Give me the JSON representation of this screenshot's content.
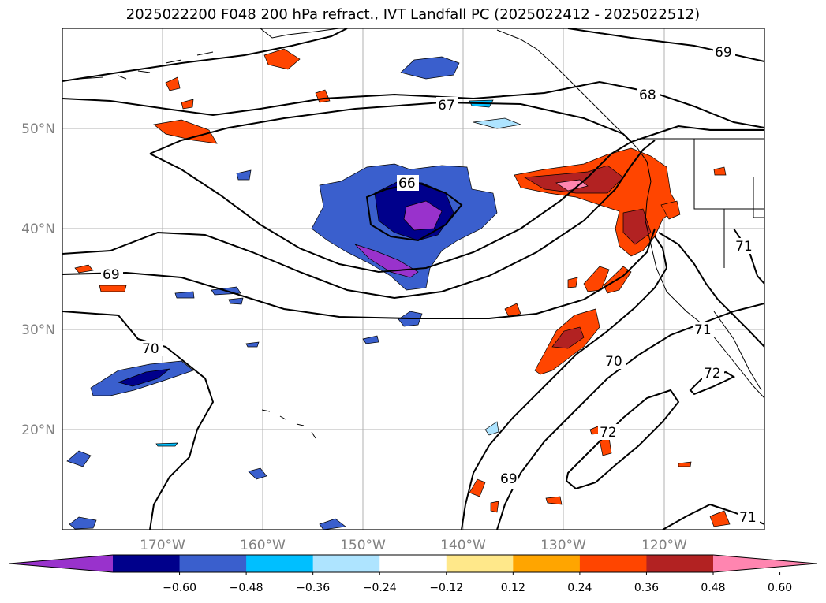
{
  "title": "2025022200 F048 200 hPa refract., IVT Landfall PC (2025022412 - 2025022512)",
  "axes": {
    "lat_labels": [
      "50°N",
      "40°N",
      "30°N",
      "20°N"
    ],
    "lon_labels": [
      "170°W",
      "160°W",
      "150°W",
      "140°W",
      "130°W",
      "120°W"
    ],
    "grid": true
  },
  "contour_labels": [
    "69",
    "67",
    "68",
    "66",
    "69",
    "70",
    "70",
    "71",
    "71",
    "72",
    "72",
    "69",
    "71"
  ],
  "colorbar": {
    "orientation": "horizontal",
    "extend": "both",
    "ticks": [
      "−0.60",
      "−0.48",
      "−0.36",
      "−0.24",
      "−0.12",
      "0.12",
      "0.24",
      "0.36",
      "0.48",
      "0.60"
    ],
    "colors": [
      "#9932cc",
      "#00008b",
      "#3a5fcd",
      "#00bfff",
      "#aee4ff",
      "#ffffff",
      "#ffe88a",
      "#ffa500",
      "#ff4500",
      "#b22222",
      "#ff85b0"
    ]
  }
}
